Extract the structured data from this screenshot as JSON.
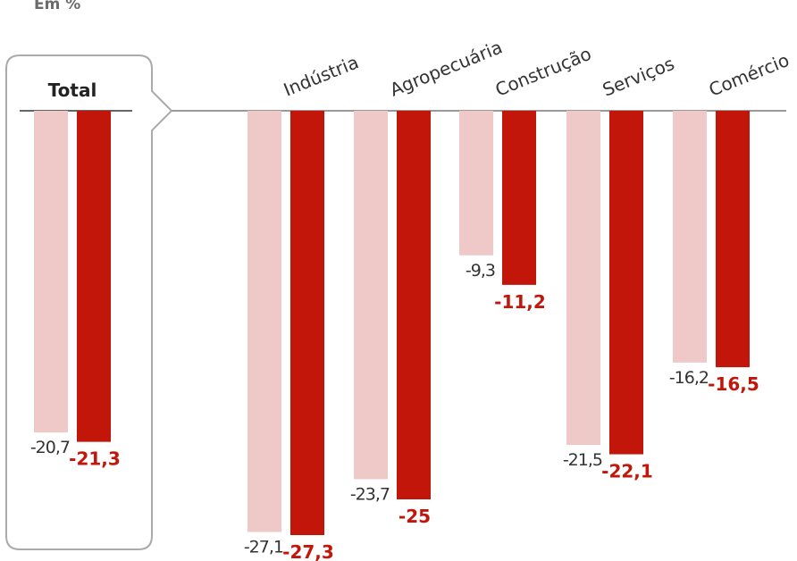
{
  "chart_data": {
    "type": "bar",
    "unit_label": "Em %",
    "total_label": "Total",
    "categories": [
      "Total",
      "Indústria",
      "Agropecuária",
      "Construção",
      "Serviços",
      "Comércio"
    ],
    "series": [
      {
        "values": [
          -20.7,
          -27.1,
          -23.7,
          -9.3,
          -21.5,
          -16.2
        ],
        "labels": [
          "-20,7",
          "-27,1",
          "-23,7",
          "-9,3",
          "-21,5",
          "-16,2"
        ]
      },
      {
        "values": [
          -21.3,
          -27.3,
          -25,
          -11.2,
          -22.1,
          -16.5
        ],
        "labels": [
          "-21,3",
          "-27,3",
          "-25",
          "-11,2",
          "-22,1",
          "-16,5"
        ]
      }
    ],
    "ylim": [
      -30,
      0
    ],
    "colors": {
      "light": "#eec9c8",
      "dark": "#c3160b",
      "axis": "#9a9a9a",
      "box": "#aaaaaa"
    }
  }
}
